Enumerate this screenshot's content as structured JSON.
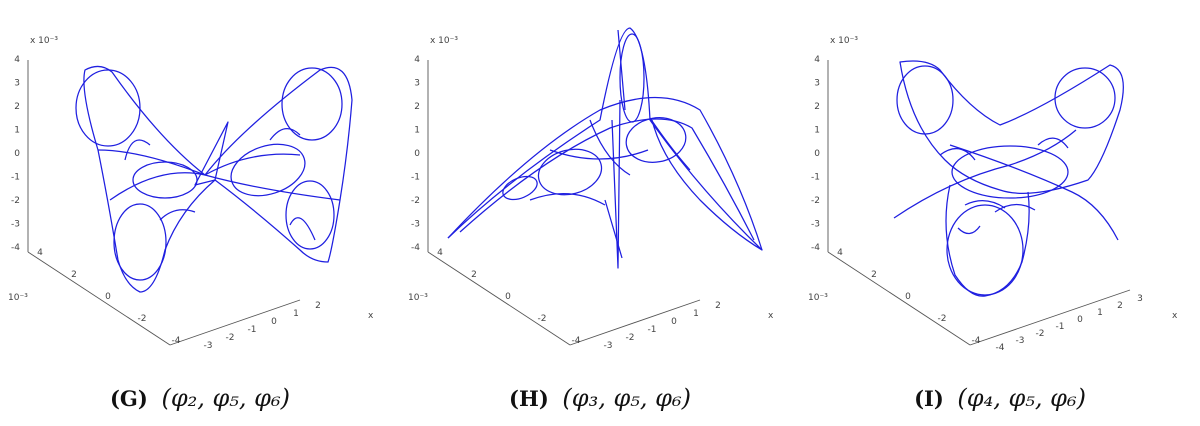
{
  "chart_data": [
    {
      "type": "line",
      "subtype": "3d-parametric-curve",
      "caption_tag": "(G)",
      "caption_math": "(φ₂, φ₅, φ₆)",
      "z_multiplier": "x 10⁻³",
      "z_ticks": [
        "4",
        "3",
        "2",
        "1",
        "0",
        "-1",
        "-2",
        "-3",
        "-4"
      ],
      "y_multiplier": "10⁻³",
      "y_ticks": [
        "4",
        "2",
        "0",
        "-2",
        "-4"
      ],
      "x_ticks": [
        "-3",
        "-2",
        "-1",
        "0",
        "1",
        "2"
      ],
      "x_label": "x",
      "color": "#1f1fe0"
    },
    {
      "type": "line",
      "subtype": "3d-parametric-curve",
      "caption_tag": "(H)",
      "caption_math": "(φ₃, φ₅, φ₆)",
      "z_multiplier": "x 10⁻³",
      "z_ticks": [
        "4",
        "3",
        "2",
        "1",
        "0",
        "-1",
        "-2",
        "-3",
        "-4"
      ],
      "y_multiplier": "10⁻³",
      "y_ticks": [
        "4",
        "2",
        "0",
        "-2",
        "-4"
      ],
      "x_ticks": [
        "-3",
        "-2",
        "-1",
        "0",
        "1",
        "2"
      ],
      "x_label": "x",
      "color": "#1f1fe0"
    },
    {
      "type": "line",
      "subtype": "3d-parametric-curve",
      "caption_tag": "(I)",
      "caption_math": "(φ₄, φ₅, φ₆)",
      "z_multiplier": "x 10⁻³",
      "z_ticks": [
        "4",
        "3",
        "2",
        "1",
        "0",
        "-1",
        "-2",
        "-3",
        "-4"
      ],
      "y_multiplier": "10⁻³",
      "y_ticks": [
        "4",
        "2",
        "0",
        "-2",
        "-4"
      ],
      "x_ticks": [
        "-4",
        "-3",
        "-2",
        "-1",
        "0",
        "1",
        "2",
        "3"
      ],
      "x_label": "x",
      "color": "#1f1fe0"
    }
  ]
}
